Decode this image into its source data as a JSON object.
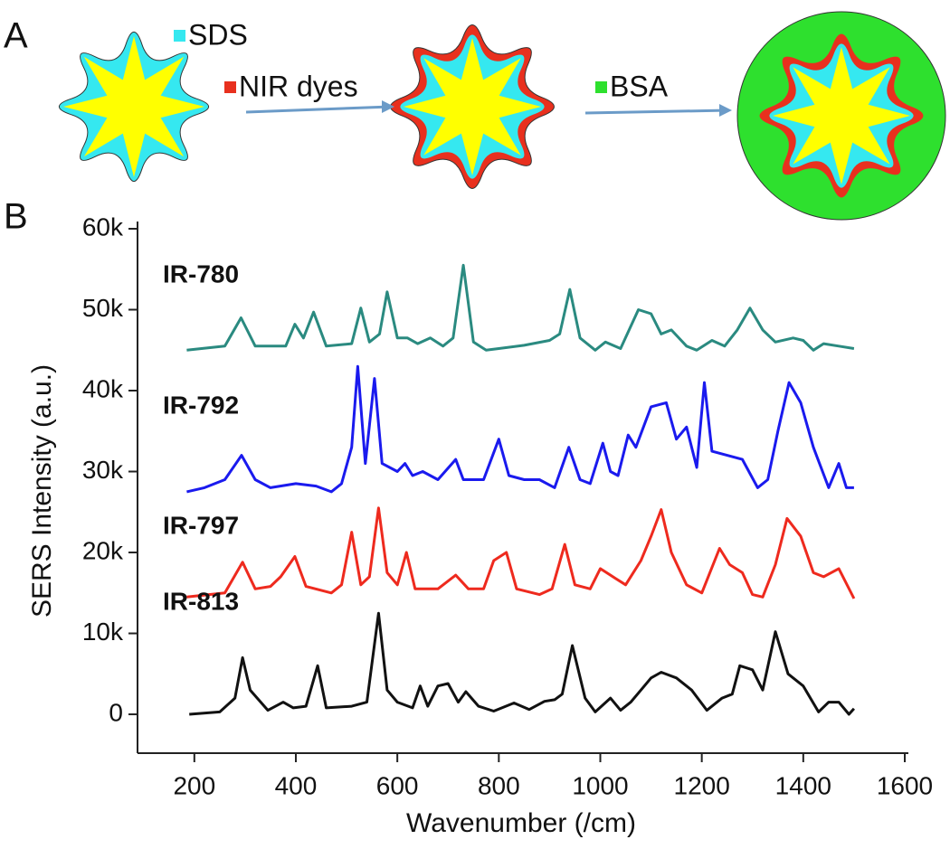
{
  "panel_a": {
    "label": "A",
    "legend": [
      {
        "text": "SDS",
        "color": "#35e8f0"
      },
      {
        "text": "NIR dyes",
        "color": "#e8301e"
      },
      {
        "text": "BSA",
        "color": "#2ee02e"
      }
    ]
  },
  "panel_b": {
    "label": "B"
  },
  "chart_data": {
    "type": "line",
    "x_label": "Wavenumber (/cm)",
    "y_label": "SERS Intensity (a.u.)",
    "xlim": [
      88,
      1600
    ],
    "xticks": [
      200,
      400,
      600,
      800,
      1000,
      1200,
      1400,
      1600
    ],
    "ylim": [
      -4800,
      60000
    ],
    "yticks": [
      0,
      {
        "value": 10000,
        "label": "10k"
      },
      {
        "value": 20000,
        "label": "20k"
      },
      {
        "value": 30000,
        "label": "30k"
      },
      {
        "value": 40000,
        "label": "40k"
      },
      {
        "value": 50000,
        "label": "50k"
      },
      {
        "value": 60000,
        "label": "60k"
      }
    ],
    "series": [
      {
        "name": "IR-780",
        "color": "#2a8a80",
        "x": [
          185,
          260,
          292,
          320,
          380,
          398,
          415,
          435,
          460,
          510,
          528,
          545,
          565,
          580,
          600,
          620,
          640,
          665,
          690,
          710,
          730,
          750,
          775,
          800,
          850,
          900,
          920,
          940,
          960,
          990,
          1010,
          1040,
          1075,
          1100,
          1120,
          1140,
          1170,
          1190,
          1220,
          1245,
          1270,
          1295,
          1320,
          1345,
          1380,
          1400,
          1420,
          1440,
          1470,
          1500
        ],
        "values": [
          45000,
          45500,
          49000,
          45500,
          45500,
          48200,
          46500,
          49700,
          45500,
          45800,
          50200,
          46000,
          47000,
          52200,
          46500,
          46500,
          45800,
          46500,
          45500,
          46500,
          55500,
          46000,
          45000,
          45200,
          45600,
          46200,
          47000,
          52500,
          46500,
          45000,
          46000,
          45200,
          50000,
          49500,
          47000,
          47500,
          45500,
          45000,
          46200,
          45500,
          47500,
          50200,
          47500,
          46000,
          46500,
          46200,
          45000,
          45800,
          45500,
          45200
        ]
      },
      {
        "name": "IR-792",
        "color": "#1a1aee",
        "x": [
          185,
          220,
          260,
          293,
          320,
          350,
          400,
          440,
          470,
          490,
          510,
          522,
          537,
          555,
          570,
          600,
          615,
          630,
          650,
          680,
          715,
          730,
          770,
          800,
          820,
          850,
          880,
          910,
          938,
          960,
          980,
          1005,
          1020,
          1035,
          1055,
          1070,
          1100,
          1130,
          1150,
          1170,
          1190,
          1205,
          1220,
          1250,
          1280,
          1310,
          1330,
          1350,
          1372,
          1395,
          1420,
          1450,
          1470,
          1485,
          1500
        ],
        "values": [
          27500,
          28000,
          29000,
          32000,
          29000,
          28000,
          28500,
          28200,
          27500,
          28500,
          33000,
          43000,
          31000,
          41500,
          31000,
          30000,
          31000,
          29500,
          30000,
          29000,
          31500,
          29000,
          29000,
          34000,
          29500,
          29000,
          29000,
          28000,
          33000,
          29000,
          28500,
          33500,
          30000,
          29500,
          34500,
          33000,
          38000,
          38500,
          34000,
          35500,
          30500,
          41000,
          32500,
          32000,
          31500,
          28000,
          29000,
          35000,
          41000,
          38500,
          33000,
          28000,
          31000,
          28000,
          28000
        ]
      },
      {
        "name": "IR-797",
        "color": "#ee2a1e",
        "x": [
          185,
          260,
          295,
          320,
          350,
          370,
          398,
          420,
          470,
          490,
          510,
          528,
          545,
          563,
          580,
          600,
          618,
          635,
          680,
          715,
          740,
          770,
          790,
          815,
          835,
          880,
          905,
          930,
          950,
          980,
          1000,
          1030,
          1050,
          1080,
          1100,
          1120,
          1140,
          1170,
          1200,
          1235,
          1255,
          1280,
          1300,
          1320,
          1345,
          1368,
          1395,
          1420,
          1440,
          1470,
          1500
        ],
        "values": [
          14500,
          15000,
          18800,
          15500,
          15800,
          17000,
          19500,
          15800,
          15000,
          16000,
          22500,
          16000,
          17000,
          25500,
          17500,
          16000,
          20000,
          15500,
          15500,
          17200,
          15500,
          15500,
          19000,
          20000,
          15500,
          14800,
          15500,
          21000,
          16000,
          15500,
          18000,
          16800,
          16000,
          19000,
          22000,
          25300,
          20000,
          16000,
          15000,
          20500,
          18500,
          17500,
          14800,
          14500,
          18500,
          24200,
          22000,
          17500,
          17000,
          18000,
          14300
        ]
      },
      {
        "name": "IR-813",
        "color": "#111111",
        "x": [
          190,
          250,
          280,
          295,
          310,
          345,
          375,
          395,
          420,
          443,
          460,
          510,
          540,
          563,
          580,
          600,
          630,
          645,
          660,
          680,
          700,
          720,
          735,
          760,
          790,
          830,
          860,
          890,
          910,
          925,
          945,
          970,
          990,
          1020,
          1040,
          1060,
          1080,
          1100,
          1120,
          1150,
          1180,
          1210,
          1240,
          1260,
          1275,
          1300,
          1320,
          1345,
          1370,
          1400,
          1430,
          1450,
          1470,
          1490,
          1500
        ],
        "values": [
          0,
          300,
          2000,
          7000,
          3000,
          500,
          1500,
          800,
          1000,
          6000,
          800,
          1000,
          1500,
          12500,
          3000,
          1500,
          800,
          3500,
          1000,
          3500,
          3800,
          1500,
          2800,
          1000,
          400,
          1400,
          600,
          1600,
          1800,
          2500,
          8500,
          2000,
          300,
          2000,
          500,
          1500,
          3000,
          4500,
          5200,
          4500,
          3000,
          500,
          2000,
          2500,
          6000,
          5500,
          3000,
          10200,
          5000,
          3500,
          300,
          1500,
          1500,
          0,
          700
        ]
      }
    ]
  }
}
